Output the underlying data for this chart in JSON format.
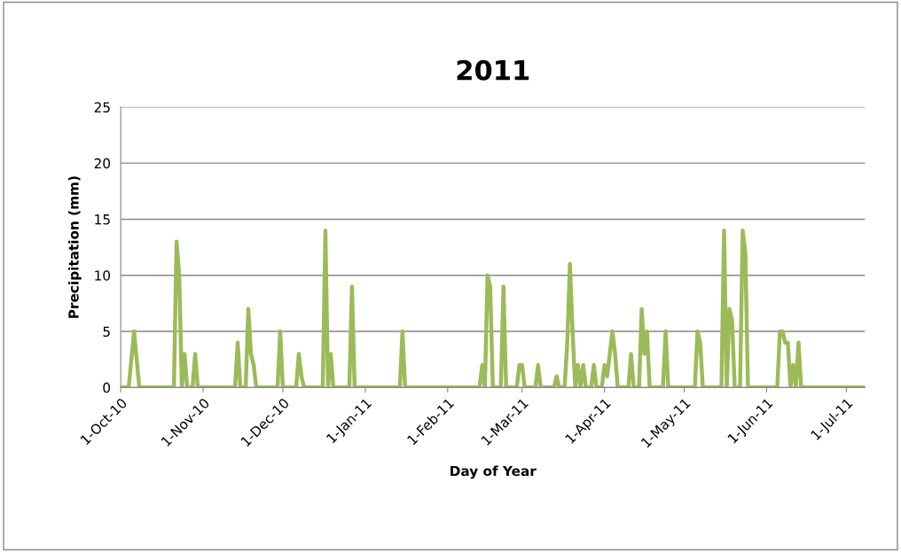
{
  "chart_data": {
    "type": "line",
    "title": "2011",
    "xlabel": "Day of Year",
    "ylabel": "Precipitation (mm)",
    "x": [
      "2010-10-01",
      "2010-10-04",
      "2010-10-06",
      "2010-10-08",
      "2010-10-21",
      "2010-10-22",
      "2010-10-23",
      "2010-10-24",
      "2010-10-25",
      "2010-10-26",
      "2010-10-28",
      "2010-10-29",
      "2010-10-30",
      "2010-11-13",
      "2010-11-14",
      "2010-11-15",
      "2010-11-17",
      "2010-11-18",
      "2010-11-19",
      "2010-11-20",
      "2010-11-21",
      "2010-11-29",
      "2010-11-30",
      "2010-12-01",
      "2010-12-06",
      "2010-12-07",
      "2010-12-08",
      "2010-12-09",
      "2010-12-16",
      "2010-12-17",
      "2010-12-18",
      "2010-12-19",
      "2010-12-20",
      "2010-12-26",
      "2010-12-27",
      "2010-12-28",
      "2011-01-14",
      "2011-01-15",
      "2011-01-16",
      "2011-02-13",
      "2011-02-14",
      "2011-02-15",
      "2011-02-16",
      "2011-02-17",
      "2011-02-18",
      "2011-02-21",
      "2011-02-22",
      "2011-02-23",
      "2011-02-27",
      "2011-02-28",
      "2011-03-01",
      "2011-03-02",
      "2011-03-06",
      "2011-03-07",
      "2011-03-08",
      "2011-03-13",
      "2011-03-14",
      "2011-03-15",
      "2011-03-17",
      "2011-03-18",
      "2011-03-19",
      "2011-03-20",
      "2011-03-21",
      "2011-03-22",
      "2011-03-23",
      "2011-03-24",
      "2011-03-25",
      "2011-03-27",
      "2011-03-28",
      "2011-03-29",
      "2011-03-31",
      "2011-04-01",
      "2011-04-02",
      "2011-04-04",
      "2011-04-05",
      "2011-04-06",
      "2011-04-10",
      "2011-04-11",
      "2011-04-12",
      "2011-04-14",
      "2011-04-15",
      "2011-04-16",
      "2011-04-17",
      "2011-04-18",
      "2011-04-23",
      "2011-04-24",
      "2011-04-25",
      "2011-05-05",
      "2011-05-06",
      "2011-05-07",
      "2011-05-08",
      "2011-05-15",
      "2011-05-16",
      "2011-05-17",
      "2011-05-18",
      "2011-05-19",
      "2011-05-20",
      "2011-05-22",
      "2011-05-23",
      "2011-05-24",
      "2011-05-25",
      "2011-06-05",
      "2011-06-06",
      "2011-06-07",
      "2011-06-08",
      "2011-06-09",
      "2011-06-10",
      "2011-06-11",
      "2011-06-12",
      "2011-06-13",
      "2011-06-14",
      "2011-07-08"
    ],
    "series": [
      {
        "color": "#9bbb59",
        "values": [
          0,
          0,
          5,
          0,
          0,
          13,
          10,
          0,
          3,
          0,
          0,
          3,
          0,
          0,
          4,
          0,
          0,
          7,
          3,
          2,
          0,
          0,
          5,
          0,
          0,
          3,
          1,
          0,
          0,
          14,
          0,
          3,
          0,
          0,
          9,
          0,
          0,
          5,
          0,
          0,
          2,
          0,
          10,
          9,
          0,
          0,
          9,
          0,
          0,
          2,
          2,
          0,
          0,
          2,
          0,
          0,
          1,
          0,
          0,
          4,
          11,
          5,
          0,
          2,
          0,
          2,
          0,
          0,
          2,
          0,
          0,
          2,
          1,
          5,
          3,
          0,
          0,
          3,
          0,
          0,
          7,
          3,
          5,
          0,
          0,
          5,
          0,
          0,
          5,
          4,
          0,
          0,
          14,
          0,
          7,
          6,
          0,
          0,
          14,
          12,
          0,
          0,
          5,
          5,
          4,
          4,
          0,
          2,
          0,
          4,
          0,
          0
        ]
      }
    ],
    "xlim": [
      "2010-10-01",
      "2011-07-08"
    ],
    "xticks": [
      {
        "value": "2010-10-01",
        "label": "1-Oct-10"
      },
      {
        "value": "2010-11-01",
        "label": "1-Nov-10"
      },
      {
        "value": "2010-12-01",
        "label": "1-Dec-10"
      },
      {
        "value": "2011-01-01",
        "label": "1-Jan-11"
      },
      {
        "value": "2011-02-01",
        "label": "1-Feb-11"
      },
      {
        "value": "2011-03-01",
        "label": "1-Mar-11"
      },
      {
        "value": "2011-04-01",
        "label": "1-Apr-11"
      },
      {
        "value": "2011-05-01",
        "label": "1-May-11"
      },
      {
        "value": "2011-06-01",
        "label": "1-Jun-11"
      },
      {
        "value": "2011-07-01",
        "label": "1-Jul-11"
      }
    ],
    "ylim": [
      0,
      25
    ],
    "yticks": [
      0,
      5,
      10,
      15,
      20,
      25
    ],
    "grid": "y",
    "marker": "none",
    "line_style": "solid"
  }
}
